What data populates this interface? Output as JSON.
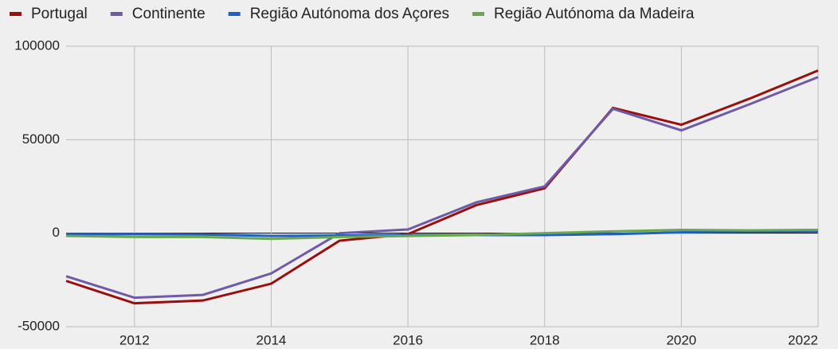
{
  "chart_data": {
    "type": "line",
    "x": [
      2011,
      2012,
      2013,
      2014,
      2015,
      2016,
      2017,
      2018,
      2019,
      2020,
      2021,
      2022
    ],
    "series": [
      {
        "name": "Portugal",
        "color": "#9a0e0e",
        "values": [
          -25500,
          -37500,
          -36000,
          -27000,
          -4000,
          -500,
          15000,
          24000,
          67000,
          58000,
          72000,
          87000
        ]
      },
      {
        "name": "Continente",
        "color": "#6f5aa8",
        "values": [
          -23000,
          -34500,
          -33000,
          -21500,
          0,
          2000,
          16500,
          25000,
          66500,
          55000,
          69000,
          83500
        ]
      },
      {
        "name": "Região Autónoma dos Açores",
        "color": "#1f5fc8",
        "values": [
          -500,
          -500,
          -700,
          -1500,
          -1200,
          -1000,
          -1000,
          -1000,
          -500,
          500,
          800,
          1000
        ]
      },
      {
        "name": "Região Autónoma da Madeira",
        "color": "#69a84f",
        "values": [
          -1500,
          -2000,
          -2000,
          -3000,
          -2000,
          -1500,
          -1000,
          0,
          1000,
          1800,
          1500,
          1800
        ]
      }
    ],
    "xlim": [
      2011,
      2022
    ],
    "xticks": [
      2012,
      2014,
      2016,
      2018,
      2020,
      2022
    ],
    "ylim": [
      -50000,
      100000
    ],
    "yticks": [
      -50000,
      0,
      50000,
      100000
    ],
    "grid": true,
    "legend": "top"
  }
}
